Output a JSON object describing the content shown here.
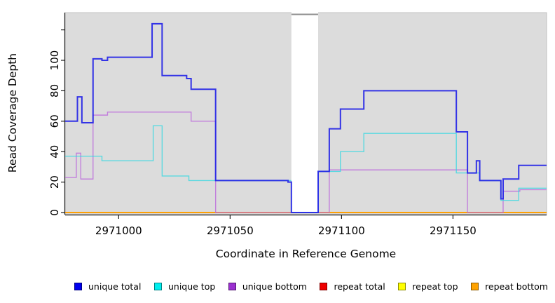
{
  "chart_data": {
    "type": "line",
    "subtype": "step-coverage",
    "title": "",
    "xlabel": "Coordinate in Reference Genome",
    "ylabel": "Read Coverage Depth",
    "xlim": [
      2970976,
      2971192
    ],
    "ylim": [
      0,
      124
    ],
    "x_ticks": [
      2971000,
      2971050,
      2971100,
      2971150
    ],
    "y_ticks": [
      0,
      20,
      40,
      60,
      80,
      100,
      120
    ],
    "y_tick_labels": [
      "0",
      "20",
      "40",
      "60",
      "80",
      "100",
      ""
    ],
    "grid": "off",
    "panel_bg": "#dcdcdc",
    "panel_border": "#c2c2c2",
    "axis_color": "#1a1a1a",
    "legend_position": "bottom",
    "mask_region": {
      "x_start": 2971077.5,
      "x_end": 2971089.5,
      "fill": "#ffffff",
      "top_border_color": "#8f8f8f",
      "note": "white band masking the plot between these coordinates"
    },
    "series": [
      {
        "name": "repeat total",
        "color": "#dd0000",
        "opacity": 1,
        "width": 1.4,
        "steps": [
          [
            2970976,
            0
          ]
        ]
      },
      {
        "name": "repeat top",
        "color": "#ffff00",
        "opacity": 1,
        "width": 1.4,
        "steps": [
          [
            2970976,
            0
          ]
        ]
      },
      {
        "name": "repeat bottom",
        "color": "#ff9d00",
        "opacity": 1,
        "width": 1.8,
        "steps": [
          [
            2970976,
            0
          ]
        ]
      },
      {
        "name": "unique bottom",
        "color": "#bb66dd",
        "opacity": 0.78,
        "width": 1.4,
        "steps": [
          [
            2970976,
            23
          ],
          [
            2970981,
            39
          ],
          [
            2970983,
            22
          ],
          [
            2970988.5,
            64
          ],
          [
            2970995,
            66
          ],
          [
            2971032.5,
            60
          ],
          [
            2971043.5,
            0
          ],
          [
            2971094.5,
            28
          ],
          [
            2971156.5,
            0
          ],
          [
            2971172.5,
            14
          ],
          [
            2971180,
            15
          ]
        ]
      },
      {
        "name": "unique top",
        "color": "#2fd8e2",
        "opacity": 0.75,
        "width": 1.4,
        "steps": [
          [
            2970976,
            37
          ],
          [
            2970992.5,
            34
          ],
          [
            2971015.5,
            57
          ],
          [
            2971019.5,
            24
          ],
          [
            2971031.5,
            21
          ],
          [
            2971077.5,
            0
          ],
          [
            2971089.5,
            27
          ],
          [
            2971099.5,
            40
          ],
          [
            2971110,
            52
          ],
          [
            2971151.5,
            26
          ],
          [
            2971162,
            21
          ],
          [
            2971171.5,
            8
          ],
          [
            2971179.5,
            16
          ]
        ]
      },
      {
        "name": "unique total",
        "color": "#2424e6",
        "opacity": 0.92,
        "width": 2,
        "steps": [
          [
            2970976,
            60
          ],
          [
            2970981.5,
            76
          ],
          [
            2970983.5,
            59
          ],
          [
            2970988.5,
            101
          ],
          [
            2970992.5,
            100
          ],
          [
            2970995,
            102
          ],
          [
            2971015,
            124
          ],
          [
            2971019.5,
            90
          ],
          [
            2971030.5,
            88
          ],
          [
            2971032.5,
            81
          ],
          [
            2971043.5,
            21
          ],
          [
            2971076,
            20
          ],
          [
            2971077.5,
            0
          ],
          [
            2971089.5,
            27
          ],
          [
            2971094.5,
            55
          ],
          [
            2971099.5,
            68
          ],
          [
            2971110,
            80
          ],
          [
            2971151.5,
            53
          ],
          [
            2971156.5,
            26
          ],
          [
            2971160.5,
            34
          ],
          [
            2971162,
            21
          ],
          [
            2971171.5,
            9
          ],
          [
            2971172.5,
            22
          ],
          [
            2971179.5,
            31
          ]
        ]
      }
    ]
  },
  "legend": {
    "items": [
      {
        "label": "unique total",
        "swatch_color": "#0000ee"
      },
      {
        "label": "unique top",
        "swatch_color": "#00eeee"
      },
      {
        "label": "unique bottom",
        "swatch_color": "#9b30d0"
      },
      {
        "label": "repeat total",
        "swatch_color": "#ee0000"
      },
      {
        "label": "repeat top",
        "swatch_color": "#ffff00"
      },
      {
        "label": "repeat bottom",
        "swatch_color": "#ffa200"
      }
    ]
  }
}
